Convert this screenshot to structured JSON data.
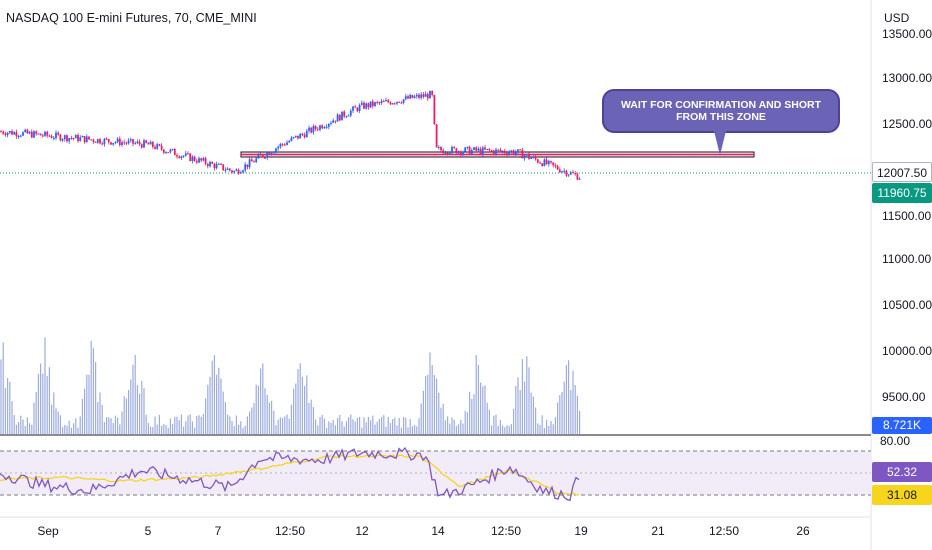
{
  "header": {
    "symbol_title": "NASDAQ 100 E-mini Futures, 70, CME_MINI",
    "currency": "USD"
  },
  "price_axis": {
    "ticks": [
      "13500.00",
      "13000.00",
      "12500.00",
      "11500.00",
      "11000.00",
      "10500.00",
      "10000.00",
      "9500.00"
    ],
    "crosshair_price": "12007.50",
    "last_price": "11960.75",
    "volume_label": "8.721K"
  },
  "rsi_axis": {
    "upper_band": "80.00",
    "rsi_value": "52.32",
    "rsi_ma_value": "31.08"
  },
  "time_axis": {
    "labels": [
      "Sep",
      "5",
      "7",
      "12:50",
      "12",
      "14",
      "12:50",
      "19",
      "21",
      "12:50",
      "26"
    ]
  },
  "annotation": {
    "text": "WAIT FOR CONFIRMATION AND SHORT FROM THIS ZONE"
  },
  "colors": {
    "up": "#2962ff",
    "down": "#e91e63",
    "last_price_badge": "#089981",
    "volume": "#7b8fd6",
    "rsi_line": "#7e57c2",
    "rsi_ma": "#f7d51d",
    "callout": "#6b63b5",
    "zone_line": "#e91e63"
  },
  "chart_data": {
    "type": "candlestick",
    "price_ylim": [
      9000,
      13600
    ],
    "price_path": [
      {
        "t": "Sep",
        "p": 12480
      },
      {
        "t": "5",
        "p": 12330
      },
      {
        "t": "7",
        "p": 12020
      },
      {
        "t": "12:50",
        "p": 12320
      },
      {
        "t": "12",
        "p": 12760
      },
      {
        "t": "14",
        "p": 12900
      },
      {
        "t": "14",
        "p": 12270
      },
      {
        "t": "12:50",
        "p": 12250
      },
      {
        "t": "19",
        "p": 11960
      }
    ],
    "zone": {
      "price_low": 12170,
      "price_high": 12230
    },
    "rsi_levels": [
      80,
      30
    ],
    "rsi_last": 52.32,
    "rsi_ma_last": 31.08
  }
}
